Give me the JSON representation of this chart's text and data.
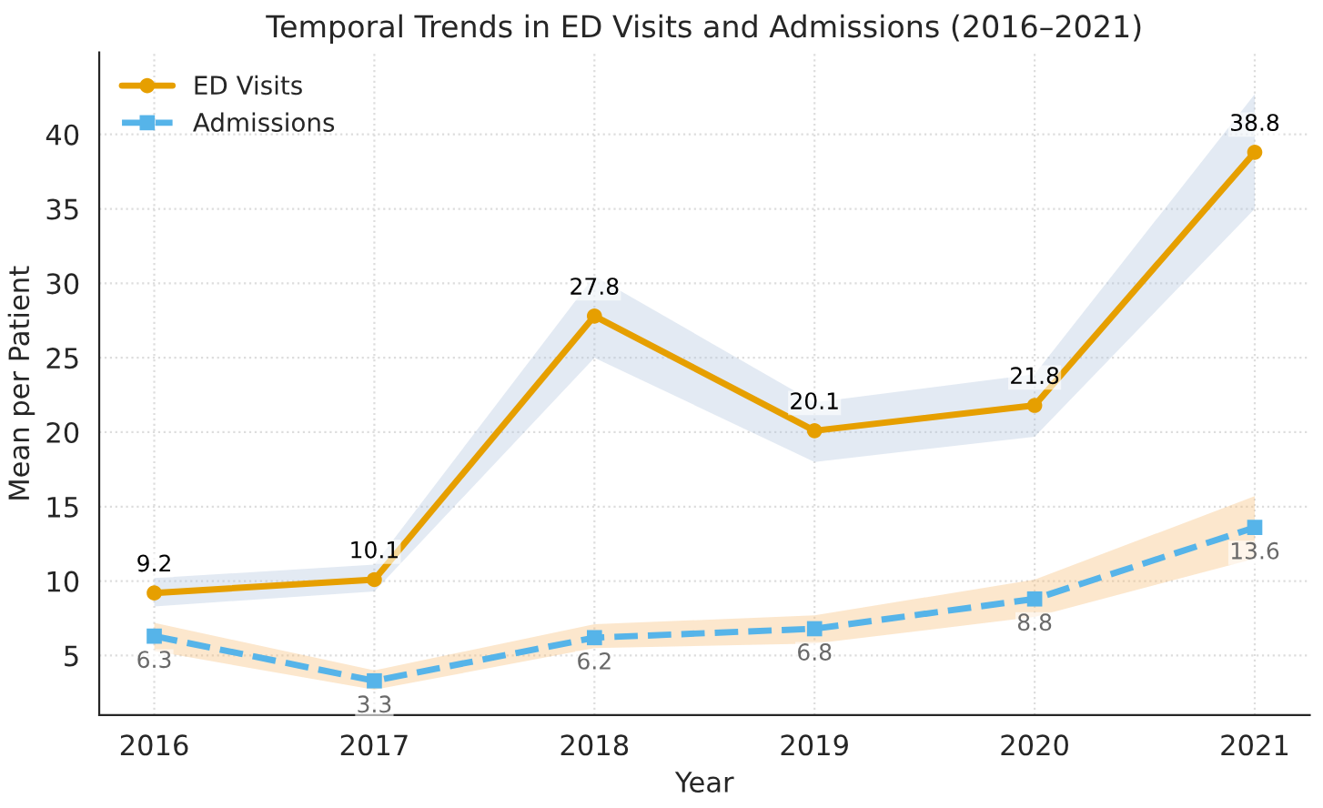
{
  "chart_data": {
    "type": "line",
    "title": "Temporal Trends in ED Visits and Admissions (2016–2021)",
    "xlabel": "Year",
    "ylabel": "Mean per Patient",
    "x": [
      2016,
      2017,
      2018,
      2019,
      2020,
      2021
    ],
    "series": [
      {
        "name": "ED Visits",
        "color": "#e69f00",
        "marker": "circle",
        "line_style": "solid",
        "values": [
          9.2,
          10.1,
          27.8,
          20.1,
          21.8,
          38.8
        ],
        "lower": [
          8.3,
          9.3,
          25.0,
          18.0,
          19.7,
          35.0
        ],
        "upper": [
          10.2,
          11.1,
          30.5,
          22.0,
          23.9,
          42.7
        ]
      },
      {
        "name": "Admissions",
        "color": "#56b4e9",
        "marker": "square",
        "line_style": "dashed",
        "values": [
          6.3,
          3.3,
          6.2,
          6.8,
          8.8,
          13.6
        ],
        "lower": [
          5.3,
          2.7,
          5.5,
          5.8,
          7.6,
          11.5
        ],
        "upper": [
          7.2,
          4.0,
          7.1,
          7.7,
          10.1,
          15.7
        ]
      }
    ],
    "xlim": [
      2015.75,
      2021.25
    ],
    "xticks": [
      2016,
      2017,
      2018,
      2019,
      2020,
      2021
    ],
    "ylim": [
      1,
      45.5
    ],
    "yticks": [
      5,
      10,
      15,
      20,
      25,
      30,
      35,
      40
    ],
    "grid": true,
    "legend": "top left",
    "data_labels": true
  }
}
